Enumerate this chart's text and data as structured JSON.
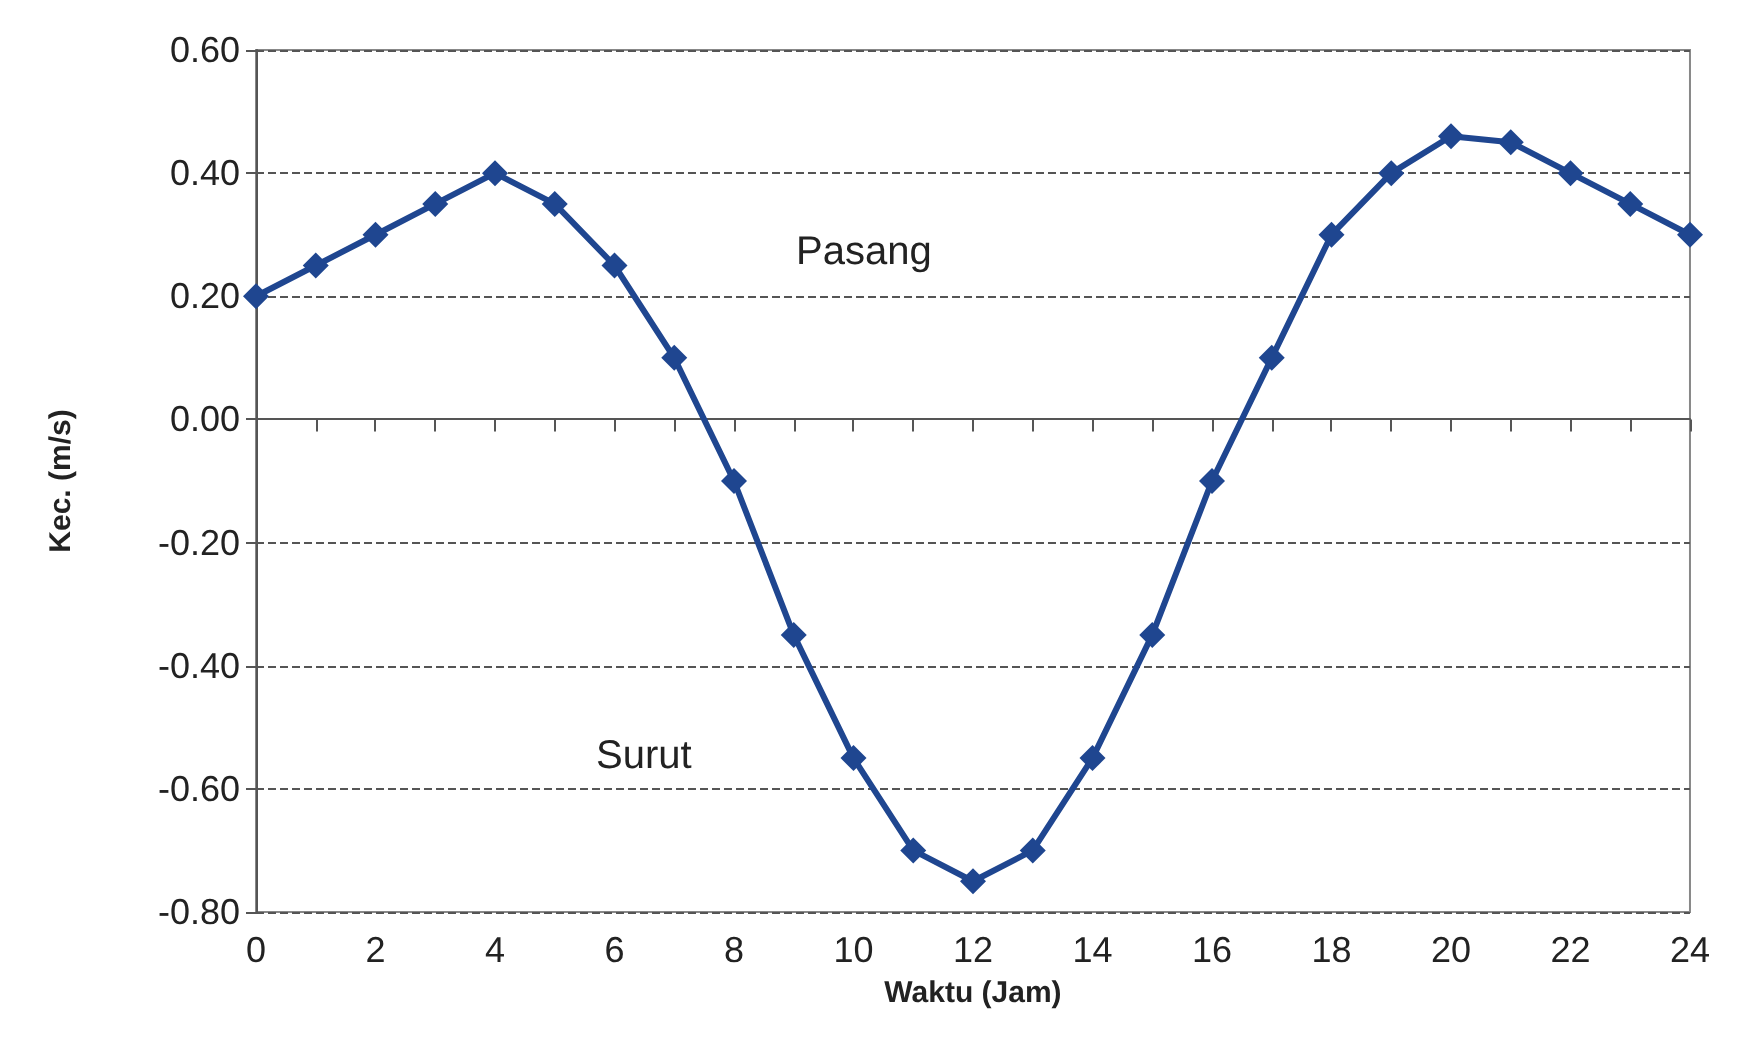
{
  "chart_data": {
    "type": "line",
    "xlabel": "Waktu (Jam)",
    "ylabel": "Kec. (m/s)",
    "x": [
      0,
      1,
      2,
      3,
      4,
      5,
      6,
      7,
      8,
      9,
      10,
      11,
      12,
      13,
      14,
      15,
      16,
      17,
      18,
      19,
      20,
      21,
      22,
      23,
      24
    ],
    "series": [
      {
        "color": "#1f4690",
        "values": [
          0.2,
          0.25,
          0.3,
          0.35,
          0.4,
          0.35,
          0.25,
          0.1,
          -0.1,
          -0.35,
          -0.55,
          -0.7,
          -0.75,
          -0.7,
          -0.55,
          -0.35,
          -0.1,
          0.1,
          0.3,
          0.4,
          0.46,
          0.45,
          0.4,
          0.35,
          0.3
        ]
      }
    ],
    "xlim": [
      0,
      24
    ],
    "xticks": [
      0,
      2,
      4,
      6,
      8,
      10,
      12,
      14,
      16,
      18,
      20,
      22,
      24
    ],
    "ylim": [
      -0.8,
      0.6
    ],
    "yticks": [
      {
        "value": -0.8,
        "label": "-0.80"
      },
      {
        "value": -0.6,
        "label": "-0.60"
      },
      {
        "value": -0.4,
        "label": "-0.40"
      },
      {
        "value": -0.2,
        "label": "-0.20"
      },
      {
        "value": 0,
        "label": "0.00"
      },
      {
        "value": 0.2,
        "label": "0.20"
      },
      {
        "value": 0.4,
        "label": "0.40"
      },
      {
        "value": 0.6,
        "label": "0.60"
      }
    ],
    "grid": "y",
    "marker": "diamond",
    "line_style": "solid",
    "annotations": [
      "Pasang",
      "Surut"
    ]
  }
}
